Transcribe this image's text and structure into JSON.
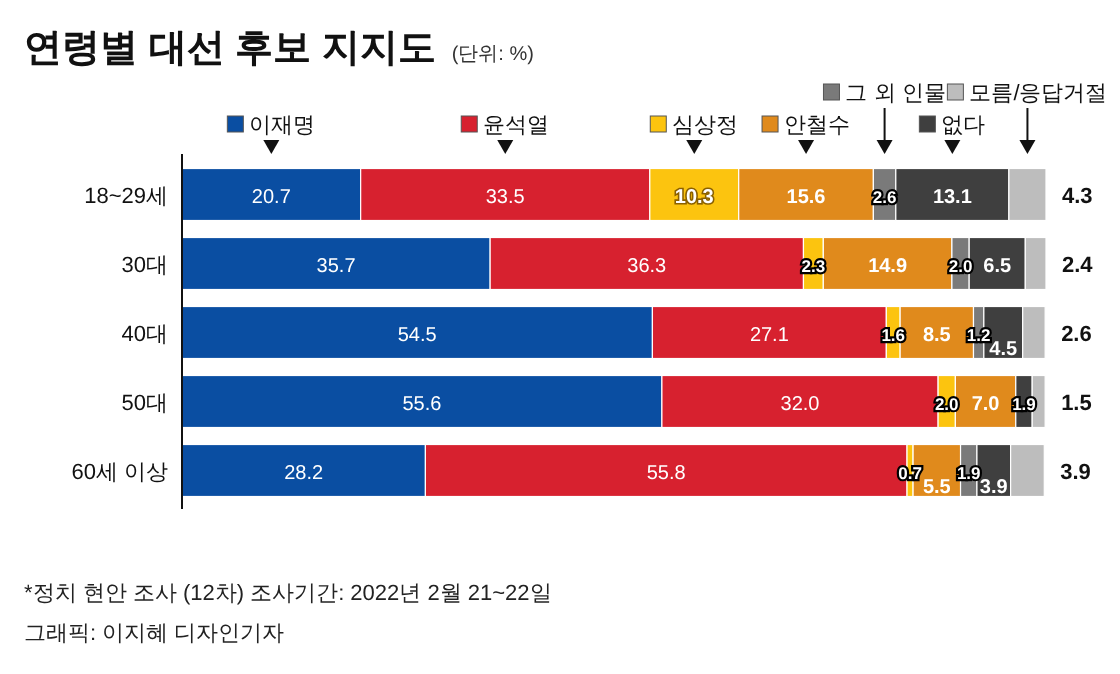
{
  "chart_data": {
    "type": "bar",
    "orientation": "horizontal",
    "stacked": true,
    "legend": "top",
    "title": "연령별 대선 후보 지지도",
    "subtitle": "(단위: %)",
    "categories": [
      "18~29세",
      "30대",
      "40대",
      "50대",
      "60세 이상"
    ],
    "series": [
      {
        "name": "이재명",
        "color": "#0a4ea2",
        "values": [
          20.7,
          35.7,
          54.5,
          55.6,
          28.2
        ],
        "value_labels": [
          "20.7",
          "35.7",
          "54.5",
          "55.6",
          "28.2"
        ]
      },
      {
        "name": "윤석열",
        "color": "#d7212f",
        "values": [
          33.5,
          36.3,
          27.1,
          32.0,
          55.8
        ],
        "value_labels": [
          "33.5",
          "36.3",
          "27.1",
          "32.0",
          "55.8"
        ]
      },
      {
        "name": "심상정",
        "color": "#fcc40f",
        "values": [
          10.3,
          2.3,
          1.6,
          2.0,
          0.7
        ],
        "value_labels": [
          "10.3",
          "2.3",
          "1.6",
          "2.0",
          "0.7"
        ]
      },
      {
        "name": "안철수",
        "color": "#e08a1c",
        "values": [
          15.6,
          14.9,
          8.5,
          7.0,
          5.5
        ],
        "value_labels": [
          "15.6",
          "14.9",
          "8.5",
          "7.0",
          "5.5"
        ]
      },
      {
        "name": "그 외 인물",
        "color": "#7a7a7a",
        "values": [
          2.6,
          2.0,
          1.2,
          null,
          1.9
        ],
        "value_labels": [
          "2.6",
          "2.0",
          "1.2",
          null,
          "1.9"
        ]
      },
      {
        "name": "없다",
        "color": "#3f3f3f",
        "values": [
          13.1,
          6.5,
          4.5,
          1.9,
          3.9
        ],
        "value_labels": [
          "13.1",
          "6.5",
          "4.5",
          "1.9",
          "3.9"
        ]
      },
      {
        "name": "모름/응답거절",
        "color": "#bdbdbd",
        "values": [
          4.3,
          2.4,
          2.6,
          1.5,
          3.9
        ],
        "value_labels": [
          "4.3",
          "2.4",
          "2.6",
          "1.5",
          "3.9"
        ]
      }
    ],
    "annotations": [
      "*정치 현안 조사 (12차) 조사기간: 2022년 2월 21~22일",
      "그래픽: 이지혜 디자인기자"
    ]
  }
}
